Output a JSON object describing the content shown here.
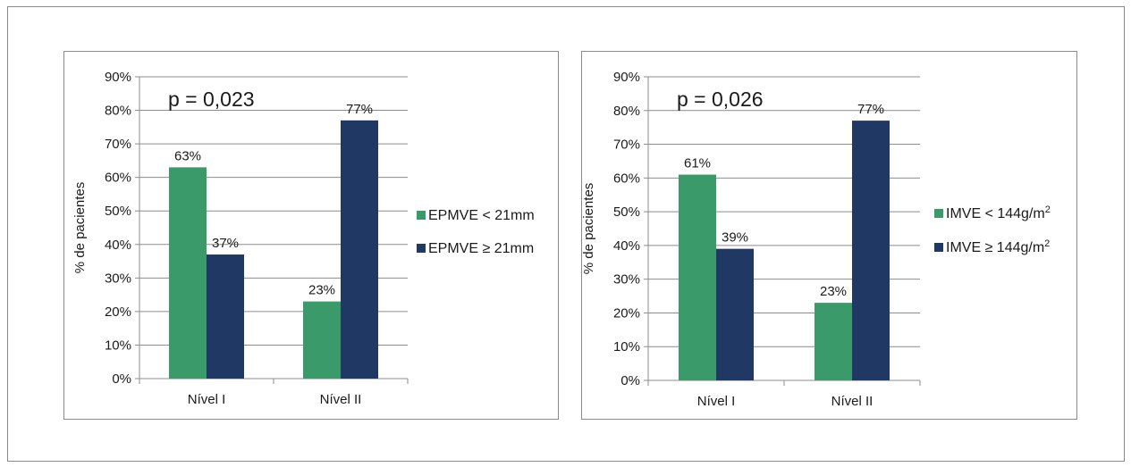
{
  "chart_data": [
    {
      "type": "bar",
      "annotation": "p = 0,023",
      "ylabel": "% de pacientes",
      "ylim": [
        0,
        90
      ],
      "yticks": [
        "0%",
        "10%",
        "20%",
        "30%",
        "40%",
        "50%",
        "60%",
        "70%",
        "80%",
        "90%"
      ],
      "categories": [
        "Nível I",
        "Nível II"
      ],
      "series": [
        {
          "name": "EPMVE < 21mm",
          "values": [
            63,
            23
          ],
          "labels": [
            "63%",
            "23%"
          ],
          "color": "#3a9a6a"
        },
        {
          "name": "EPMVE ≥ 21mm",
          "values": [
            37,
            77
          ],
          "labels": [
            "37%",
            "77%"
          ],
          "color": "#1f3864"
        }
      ],
      "legend_position": "right",
      "grid": true
    },
    {
      "type": "bar",
      "annotation": "p = 0,026",
      "ylabel": "% de pacientes",
      "ylim": [
        0,
        90
      ],
      "yticks": [
        "0%",
        "10%",
        "20%",
        "30%",
        "40%",
        "50%",
        "60%",
        "70%",
        "80%",
        "90%"
      ],
      "categories": [
        "Nível I",
        "Nível II"
      ],
      "series": [
        {
          "name": "IMVE < 144g/m",
          "sup": "2",
          "values": [
            61,
            23
          ],
          "labels": [
            "61%",
            "23%"
          ],
          "color": "#3a9a6a"
        },
        {
          "name": "IMVE ≥ 144g/m",
          "sup": "2",
          "values": [
            39,
            77
          ],
          "labels": [
            "39%",
            "77%"
          ],
          "color": "#1f3864"
        }
      ],
      "legend_position": "right",
      "grid": true
    }
  ]
}
